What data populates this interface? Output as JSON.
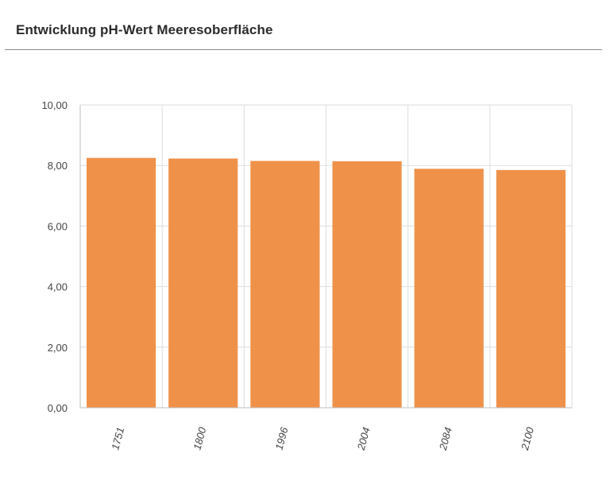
{
  "header": {
    "title": "Entwicklung pH-Wert Meeresoberfläche"
  },
  "chart_data": {
    "type": "bar",
    "title": "Entwicklung pH-Wert Meeresoberfläche",
    "categories": [
      "1751",
      "1800",
      "1996",
      "2004",
      "2084",
      "2100"
    ],
    "values": [
      8.25,
      8.23,
      8.15,
      8.14,
      7.89,
      7.85
    ],
    "ylim": [
      0,
      10
    ],
    "yticks": [
      "0,00",
      "2,00",
      "4,00",
      "6,00",
      "8,00",
      "10,00"
    ],
    "xlabel": "",
    "ylabel": "",
    "grid": true,
    "bar_color": "#f0914a",
    "grid_color": "#dddddd",
    "axis_color": "#bdbdbd"
  }
}
